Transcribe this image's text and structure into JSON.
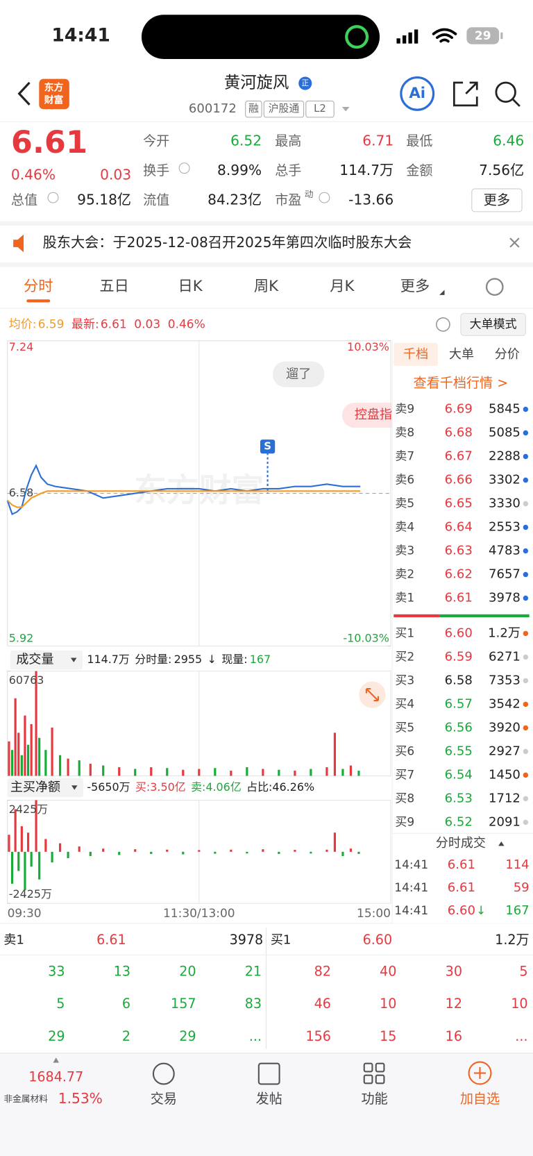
{
  "status_bar": {
    "time": "14:41",
    "battery": "29"
  },
  "header": {
    "logo": [
      "东方",
      "财富"
    ],
    "name": "黄河旋风",
    "badge": "正",
    "code": "600172",
    "tags": [
      "融",
      "沪股通",
      "L2"
    ],
    "ai": "Ai"
  },
  "quote": {
    "price": "6.61",
    "change_pct": "0.46%",
    "change": "0.03",
    "total_value_label": "总值",
    "total_value": "95.18亿",
    "fields": [
      {
        "label": "今开",
        "value": "6.52"
      },
      {
        "label": "最高",
        "value": "6.71"
      },
      {
        "label": "最低",
        "value": "6.46"
      },
      {
        "label": "换手",
        "value": "8.99%"
      },
      {
        "label": "总手",
        "value": "114.7万"
      },
      {
        "label": "金额",
        "value": "7.56亿"
      },
      {
        "label": "流值",
        "value": "84.23亿"
      },
      {
        "label": "市盈",
        "value": "-13.66"
      }
    ],
    "pe_suffix": "动",
    "more": "更多"
  },
  "notice": {
    "text": "股东大会：于2025-12-08召开2025年第四次临时股东大会"
  },
  "tabs": {
    "items": [
      "分时",
      "五日",
      "日K",
      "周K",
      "月K",
      "更多"
    ]
  },
  "chart_info": {
    "avg_label": "均价:",
    "avg": "6.59",
    "latest_label": "最新:",
    "latest": "6.61",
    "change": "0.03",
    "pct": "0.46%",
    "mode": "大单模式"
  },
  "overlays": {
    "bubble": "遛了",
    "control": "控盘指",
    "marker": "S",
    "watermark": "东方财富"
  },
  "volume_header": {
    "selector": "成交量",
    "total": "114.7万",
    "period_label": "分时量:",
    "period_value": "2955",
    "arrow": "↓",
    "current_label": "现量:",
    "current_value": "167"
  },
  "flow_header": {
    "selector": "主买净额",
    "net": "-5650万",
    "buy": "买:3.50亿",
    "sell": "卖:4.06亿",
    "ratio": "占比:46.26%"
  },
  "chart_data": [
    {
      "type": "line",
      "x": [
        0,
        3,
        6,
        9,
        12,
        15,
        18,
        21,
        25,
        30,
        40,
        50,
        60,
        70,
        80,
        90,
        100,
        110,
        120,
        130,
        140,
        150,
        160,
        170,
        180,
        190,
        200,
        210,
        221
      ],
      "series": [
        {
          "name": "最新",
          "color": "#2b6fd6",
          "values": [
            6.55,
            6.49,
            6.5,
            6.52,
            6.6,
            6.66,
            6.7,
            6.65,
            6.62,
            6.61,
            6.6,
            6.59,
            6.56,
            6.57,
            6.58,
            6.59,
            6.6,
            6.6,
            6.6,
            6.59,
            6.6,
            6.59,
            6.6,
            6.6,
            6.61,
            6.61,
            6.62,
            6.61,
            6.61
          ]
        },
        {
          "name": "均价",
          "color": "#f59a23",
          "values": [
            6.55,
            6.53,
            6.52,
            6.52,
            6.54,
            6.56,
            6.57,
            6.58,
            6.59,
            6.59,
            6.59,
            6.59,
            6.59,
            6.59,
            6.59,
            6.59,
            6.59,
            6.59,
            6.59,
            6.59,
            6.59,
            6.59,
            6.59,
            6.59,
            6.59,
            6.59,
            6.59,
            6.59,
            6.59
          ]
        }
      ],
      "xlim": [
        0,
        240
      ],
      "xticks": [
        {
          "value": 0,
          "label": "09:30"
        },
        {
          "value": 120,
          "label": "11:30/13:00"
        },
        {
          "value": 240,
          "label": "15:00"
        }
      ],
      "ylim": [
        5.92,
        7.24
      ],
      "yticks": [
        7.24,
        6.58,
        5.92
      ],
      "y2lim": [
        -10.03,
        10.03
      ],
      "y2ticks": [
        {
          "value": 10.03,
          "label": "10.03%"
        },
        {
          "value": -10.03,
          "label": "-10.03%"
        }
      ],
      "grid": true
    },
    {
      "type": "bar",
      "x": [
        1,
        3,
        5,
        7,
        9,
        11,
        13,
        15,
        18,
        20,
        24,
        28,
        33,
        38,
        45,
        52,
        60,
        70,
        80,
        90,
        100,
        110,
        120,
        130,
        140,
        150,
        160,
        170,
        180,
        190,
        200,
        205,
        210,
        215,
        220
      ],
      "values": [
        20000,
        15000,
        45000,
        25000,
        12000,
        35000,
        18000,
        30000,
        60763,
        22000,
        15000,
        28000,
        12000,
        10000,
        9000,
        7000,
        6000,
        5000,
        4000,
        5000,
        4500,
        3500,
        4000,
        4500,
        3000,
        5000,
        4000,
        3500,
        3000,
        4000,
        5000,
        25000,
        4000,
        6000,
        2955
      ],
      "colors": [
        "#e6393f",
        "#1aaa3a",
        "#e6393f",
        "#e6393f",
        "#1aaa3a",
        "#e6393f",
        "#1aaa3a",
        "#e6393f",
        "#e6393f",
        "#1aaa3a",
        "#1aaa3a",
        "#e6393f",
        "#1aaa3a",
        "#e6393f",
        "#1aaa3a",
        "#e6393f",
        "#1aaa3a",
        "#e6393f",
        "#1aaa3a",
        "#e6393f",
        "#1aaa3a",
        "#e6393f",
        "#e6393f",
        "#1aaa3a",
        "#e6393f",
        "#1aaa3a",
        "#e6393f",
        "#1aaa3a",
        "#e6393f",
        "#1aaa3a",
        "#e6393f",
        "#e6393f",
        "#1aaa3a",
        "#e6393f",
        "#1aaa3a"
      ],
      "xlim": [
        0,
        240
      ],
      "ylim": [
        0,
        60763
      ],
      "yticks": [
        60763
      ]
    },
    {
      "type": "bar",
      "x": [
        1,
        3,
        5,
        7,
        9,
        11,
        13,
        15,
        18,
        20,
        24,
        28,
        33,
        38,
        45,
        52,
        60,
        70,
        80,
        90,
        100,
        110,
        120,
        130,
        140,
        150,
        160,
        170,
        180,
        190,
        200,
        205,
        210,
        215,
        220
      ],
      "values": [
        800,
        -1500,
        2000,
        -900,
        1200,
        -1800,
        900,
        -700,
        2425,
        -1300,
        600,
        -500,
        400,
        -300,
        250,
        -200,
        150,
        -150,
        120,
        -100,
        100,
        -120,
        80,
        -90,
        100,
        -80,
        120,
        -100,
        90,
        -80,
        100,
        900,
        -200,
        150,
        -100
      ],
      "up_color": "#e6393f",
      "down_color": "#1aaa3a",
      "xlim": [
        0,
        240
      ],
      "ylim": [
        -2425,
        2425
      ],
      "yticks": [
        {
          "value": 2425,
          "label": "2425万"
        },
        {
          "value": -2425,
          "label": "-2425万"
        }
      ]
    }
  ],
  "order_book": {
    "tabs": [
      "千档",
      "大单",
      "分价"
    ],
    "link": "查看千档行情 >",
    "sells": [
      {
        "label": "卖9",
        "price": "6.69",
        "volume": "5845",
        "dot": "#2b6fd6"
      },
      {
        "label": "卖8",
        "price": "6.68",
        "volume": "5085",
        "dot": "#2b6fd6"
      },
      {
        "label": "卖7",
        "price": "6.67",
        "volume": "2288",
        "dot": "#2b6fd6"
      },
      {
        "label": "卖6",
        "price": "6.66",
        "volume": "3302",
        "dot": "#2b6fd6"
      },
      {
        "label": "卖5",
        "price": "6.65",
        "volume": "3330",
        "dot": "#cccccc"
      },
      {
        "label": "卖4",
        "price": "6.64",
        "volume": "2553",
        "dot": "#2b6fd6"
      },
      {
        "label": "卖3",
        "price": "6.63",
        "volume": "4783",
        "dot": "#2b6fd6"
      },
      {
        "label": "卖2",
        "price": "6.62",
        "volume": "7657",
        "dot": "#2b6fd6"
      },
      {
        "label": "卖1",
        "price": "6.61",
        "volume": "3978",
        "dot": "#2b6fd6"
      }
    ],
    "buys": [
      {
        "label": "买1",
        "price": "6.60",
        "volume": "1.2万",
        "dot": "#f0641e"
      },
      {
        "label": "买2",
        "price": "6.59",
        "volume": "6271",
        "dot": "#cccccc"
      },
      {
        "label": "买3",
        "price": "6.58",
        "volume": "7353",
        "dot": "#cccccc"
      },
      {
        "label": "买4",
        "price": "6.57",
        "volume": "3542",
        "dot": "#f0641e"
      },
      {
        "label": "买5",
        "price": "6.56",
        "volume": "3920",
        "dot": "#f0641e"
      },
      {
        "label": "买6",
        "price": "6.55",
        "volume": "2927",
        "dot": "#cccccc"
      },
      {
        "label": "买7",
        "price": "6.54",
        "volume": "1450",
        "dot": "#f0641e"
      },
      {
        "label": "买8",
        "price": "6.53",
        "volume": "1712",
        "dot": "#cccccc"
      },
      {
        "label": "买9",
        "price": "6.52",
        "volume": "2091",
        "dot": "#cccccc"
      }
    ]
  },
  "trades": {
    "title": "分时成交",
    "rows": [
      {
        "time": "14:41",
        "price": "6.61",
        "arrow": "",
        "volume": "114",
        "color": "#e6393f"
      },
      {
        "time": "14:41",
        "price": "6.61",
        "arrow": "",
        "volume": "59",
        "color": "#e6393f"
      },
      {
        "time": "14:41",
        "price": "6.60",
        "arrow": "↓",
        "volume": "167",
        "color": "#1aaa3a"
      }
    ]
  },
  "level2": {
    "sell_label": "卖1",
    "sell_price": "6.61",
    "sell_volume": "3978",
    "buy_label": "买1",
    "buy_price": "6.60",
    "buy_volume": "1.2万",
    "sell_queue": [
      [
        "33",
        "13",
        "20",
        "21"
      ],
      [
        "5",
        "6",
        "157",
        "83"
      ],
      [
        "29",
        "2",
        "29",
        "..."
      ]
    ],
    "buy_queue": [
      [
        "82",
        "40",
        "30",
        "5"
      ],
      [
        "46",
        "10",
        "12",
        "10"
      ],
      [
        "156",
        "15",
        "16",
        "..."
      ]
    ]
  },
  "bottom_nav": {
    "index_value": "1684.77",
    "index_name": "非金属材料",
    "index_change": "1.53%",
    "items": [
      "交易",
      "发帖",
      "功能",
      "加自选"
    ]
  }
}
